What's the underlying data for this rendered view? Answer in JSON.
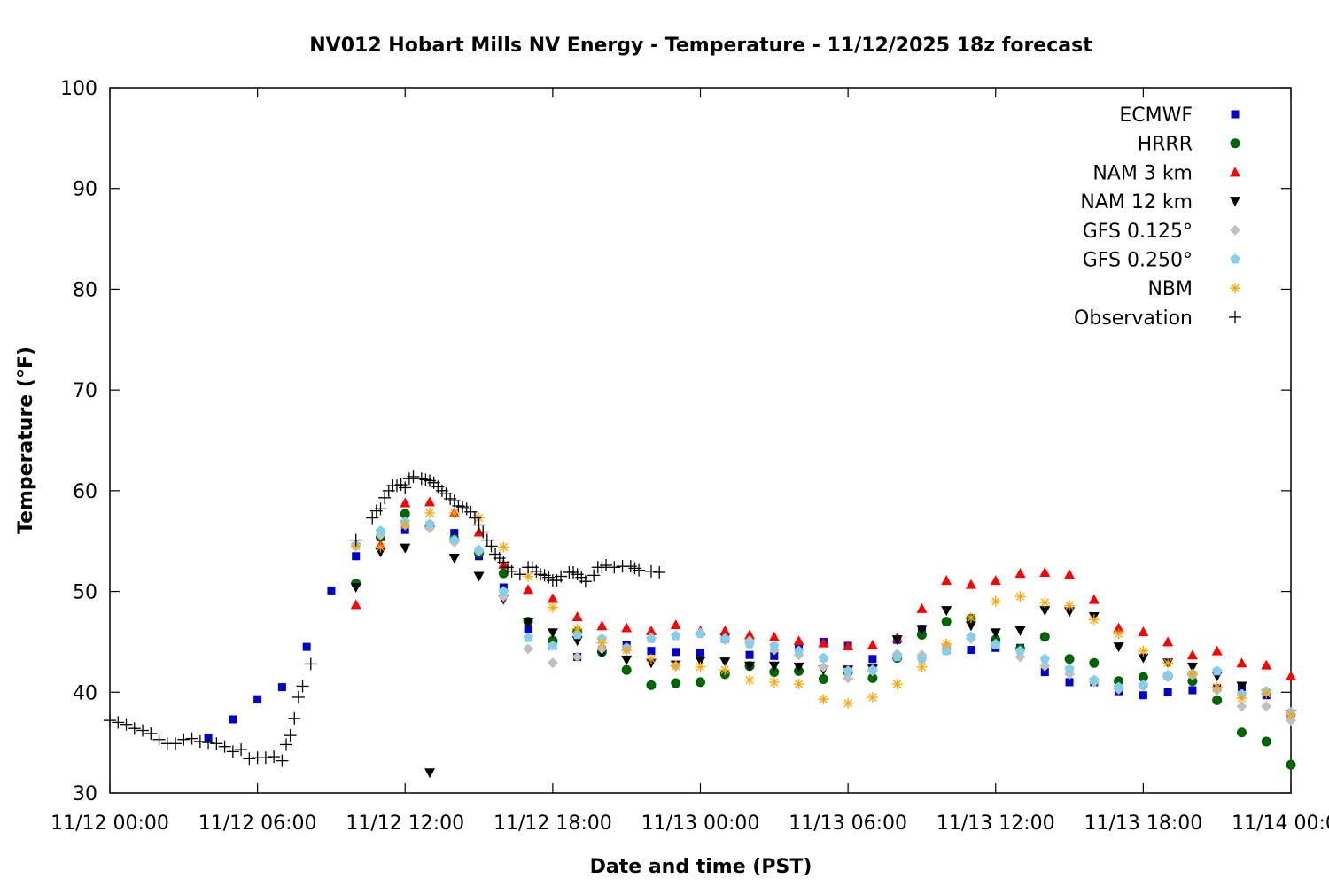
{
  "chart_data": {
    "type": "scatter",
    "title": "NV012 Hobart Mills NV Energy - Temperature - 11/12/2025 18z forecast",
    "xlabel": "Date and time (PST)",
    "ylabel": "Temperature (°F)",
    "xlim": [
      "11/12 00:00",
      "11/14 00:00"
    ],
    "ylim": [
      30,
      100
    ],
    "x_ticks": [
      "11/12 00:00",
      "11/12 06:00",
      "11/12 12:00",
      "11/12 18:00",
      "11/13 00:00",
      "11/13 06:00",
      "11/13 12:00",
      "11/13 18:00",
      "11/14 00:00"
    ],
    "y_ticks": [
      30,
      40,
      50,
      60,
      70,
      80,
      90,
      100
    ],
    "grid": false,
    "legend_position": "top-right",
    "model_times": [
      "11/12 10:00",
      "11/12 11:00",
      "11/12 12:00",
      "11/12 13:00",
      "11/12 14:00",
      "11/12 15:00",
      "11/12 16:00",
      "11/12 17:00",
      "11/12 18:00",
      "11/12 19:00",
      "11/12 20:00",
      "11/12 21:00",
      "11/12 22:00",
      "11/12 23:00",
      "11/13 00:00",
      "11/13 01:00",
      "11/13 02:00",
      "11/13 03:00",
      "11/13 04:00",
      "11/13 05:00",
      "11/13 06:00",
      "11/13 07:00",
      "11/13 08:00",
      "11/13 09:00",
      "11/13 10:00",
      "11/13 11:00",
      "11/13 12:00",
      "11/13 13:00",
      "11/13 14:00",
      "11/13 15:00",
      "11/13 16:00",
      "11/13 17:00",
      "11/13 18:00",
      "11/13 19:00",
      "11/13 20:00",
      "11/13 21:00",
      "11/13 22:00",
      "11/13 23:00",
      "11/14 00:00"
    ],
    "series": [
      {
        "name": "ECMWF",
        "marker": "square",
        "color": "#0000cc",
        "x": [
          "11/12 04:00",
          "11/12 05:00",
          "11/12 06:00",
          "11/12 07:00",
          "11/12 08:00",
          "11/12 09:00",
          "11/12 10:00",
          "11/12 11:00",
          "11/12 12:00",
          "11/12 13:00",
          "11/12 14:00",
          "11/12 15:00",
          "11/12 16:00",
          "11/12 17:00",
          "11/12 18:00",
          "11/12 19:00",
          "11/12 20:00",
          "11/12 21:00",
          "11/12 22:00",
          "11/12 23:00",
          "11/13 00:00",
          "11/13 01:00",
          "11/13 02:00",
          "11/13 03:00",
          "11/13 04:00",
          "11/13 05:00",
          "11/13 06:00",
          "11/13 07:00",
          "11/13 08:00",
          "11/13 09:00",
          "11/13 10:00",
          "11/13 11:00",
          "11/13 12:00",
          "11/13 13:00",
          "11/13 14:00",
          "11/13 15:00",
          "11/13 16:00",
          "11/13 17:00",
          "11/13 18:00",
          "11/13 19:00",
          "11/13 20:00",
          "11/13 21:00",
          "11/13 22:00",
          "11/13 23:00",
          "11/14 00:00"
        ],
        "values": [
          35.5,
          37.3,
          39.3,
          40.5,
          44.5,
          50.1,
          53.5,
          55.4,
          56.1,
          56.5,
          55.8,
          53.5,
          50.4,
          46.3,
          44.6,
          43.5,
          44.2,
          44.7,
          44.1,
          44.0,
          43.9,
          45.3,
          43.7,
          43.6,
          44.3,
          45.0,
          44.6,
          43.3,
          45.2,
          46.3,
          44.2,
          44.2,
          44.4,
          44.4,
          42.0,
          41.0,
          41.0,
          40.1,
          39.7,
          40.0,
          40.2,
          40.4,
          40.5,
          39.7,
          37.9
        ]
      },
      {
        "name": "HRRR",
        "marker": "circle",
        "color": "#006400",
        "values": [
          50.8,
          55.4,
          57.7,
          56.5,
          55.2,
          53.8,
          51.8,
          47.0,
          45.1,
          46.0,
          44.0,
          42.2,
          40.7,
          40.9,
          41.0,
          41.8,
          42.6,
          42.0,
          42.1,
          41.3,
          42.0,
          41.4,
          43.4,
          45.7,
          47.0,
          47.3,
          45.2,
          44.3,
          45.5,
          43.3,
          42.9,
          41.1,
          41.5,
          41.6,
          41.1,
          39.2,
          36.0,
          35.1,
          32.8
        ]
      },
      {
        "name": "NAM 3 km",
        "marker": "triangle-up",
        "color": "#ff0000",
        "values": [
          48.7,
          54.6,
          58.8,
          58.9,
          57.8,
          55.9,
          52.7,
          50.2,
          49.3,
          47.5,
          46.6,
          46.4,
          46.1,
          46.7,
          46.1,
          46.1,
          45.7,
          45.5,
          45.1,
          44.9,
          44.6,
          44.7,
          45.4,
          48.3,
          51.1,
          50.7,
          51.1,
          51.8,
          51.9,
          51.7,
          49.2,
          46.4,
          46.0,
          45.0,
          43.7,
          44.1,
          42.9,
          42.7,
          41.6
        ]
      },
      {
        "name": "NAM 12 km",
        "marker": "triangle-down",
        "color": "#000000",
        "values": [
          50.4,
          53.9,
          54.3,
          32.0,
          53.3,
          51.5,
          49.2,
          46.9,
          45.9,
          45.1,
          43.9,
          43.2,
          42.9,
          42.7,
          43.1,
          43.0,
          42.6,
          42.6,
          42.5,
          42.2,
          42.2,
          42.3,
          45.2,
          46.2,
          48.1,
          46.6,
          45.9,
          46.1,
          48.1,
          48.0,
          47.5,
          44.5,
          43.4,
          42.9,
          42.5,
          41.6,
          40.6,
          39.8,
          37.8
        ]
      },
      {
        "name": "GFS 0.125°",
        "marker": "diamond",
        "color": "#c0c0c0",
        "values": [
          54.5,
          55.6,
          56.6,
          56.3,
          54.9,
          54.0,
          49.5,
          44.3,
          42.9,
          43.5,
          44.3,
          44.2,
          45.4,
          42.6,
          45.9,
          45.2,
          45.1,
          44.2,
          43.7,
          42.5,
          41.4,
          42.1,
          43.8,
          43.7,
          44.6,
          45.3,
          44.8,
          43.5,
          42.6,
          41.8,
          41.0,
          40.3,
          40.6,
          41.5,
          41.7,
          40.2,
          38.6,
          38.6,
          37.2
        ]
      },
      {
        "name": "GFS 0.250°",
        "marker": "pentagon",
        "color": "#87ceeb",
        "values": [
          54.6,
          56.0,
          56.9,
          56.7,
          55.1,
          54.1,
          50.0,
          45.4,
          44.6,
          45.7,
          45.3,
          44.4,
          45.3,
          45.6,
          45.8,
          45.3,
          44.8,
          44.6,
          44.1,
          43.4,
          42.1,
          42.2,
          43.5,
          43.3,
          44.1,
          45.5,
          44.7,
          44.1,
          43.3,
          42.3,
          41.2,
          40.5,
          40.7,
          41.7,
          41.8,
          42.1,
          39.8,
          40.1,
          38.0
        ]
      },
      {
        "name": "NBM",
        "marker": "asterisk",
        "color": "#ffa500",
        "values": [
          54.5,
          54.4,
          56.6,
          57.8,
          57.8,
          57.3,
          54.4,
          51.5,
          48.4,
          46.3,
          44.9,
          44.2,
          43.3,
          42.6,
          42.5,
          42.2,
          41.2,
          41.0,
          40.8,
          39.3,
          38.9,
          39.5,
          40.8,
          42.5,
          44.8,
          47.4,
          49.0,
          49.5,
          48.9,
          48.6,
          47.2,
          45.8,
          44.1,
          42.9,
          41.8,
          40.5,
          39.4,
          39.9,
          37.8
        ]
      },
      {
        "name": "Observation",
        "marker": "plus",
        "color": "#000000",
        "x": [
          "11/12 00:00",
          "11/12 00:20",
          "11/12 00:40",
          "11/12 01:00",
          "11/12 01:20",
          "11/12 01:40",
          "11/12 02:00",
          "11/12 02:20",
          "11/12 02:40",
          "11/12 03:00",
          "11/12 03:20",
          "11/12 03:40",
          "11/12 04:00",
          "11/12 04:20",
          "11/12 04:40",
          "11/12 05:00",
          "11/12 05:20",
          "11/12 05:40",
          "11/12 06:00",
          "11/12 06:20",
          "11/12 06:40",
          "11/12 07:00",
          "11/12 07:10",
          "11/12 07:20",
          "11/12 07:30",
          "11/12 07:40",
          "11/12 07:50",
          "11/12 08:10",
          "11/12 10:00",
          "11/12 10:40",
          "11/12 10:50",
          "11/12 11:00",
          "11/12 11:10",
          "11/12 11:20",
          "11/12 11:30",
          "11/12 11:40",
          "11/12 11:50",
          "11/12 12:00",
          "11/12 12:10",
          "11/12 12:20",
          "11/12 12:40",
          "11/12 12:50",
          "11/12 13:00",
          "11/12 13:10",
          "11/12 13:20",
          "11/12 13:30",
          "11/12 13:40",
          "11/12 13:50",
          "11/12 14:00",
          "11/12 14:10",
          "11/12 14:20",
          "11/12 14:30",
          "11/12 14:40",
          "11/12 14:50",
          "11/12 15:00",
          "11/12 15:10",
          "11/12 15:20",
          "11/12 15:30",
          "11/12 15:40",
          "11/12 15:50",
          "11/12 16:00",
          "11/12 16:10",
          "11/12 16:20",
          "11/12 16:40",
          "11/12 17:00",
          "11/12 17:10",
          "11/12 17:20",
          "11/12 17:30",
          "11/12 17:40",
          "11/12 17:50",
          "11/12 18:00",
          "11/12 18:10",
          "11/12 18:20",
          "11/12 18:40",
          "11/12 18:50",
          "11/12 19:00",
          "11/12 19:10",
          "11/12 19:20",
          "11/12 19:40",
          "11/12 19:50",
          "11/12 20:00",
          "11/12 20:10",
          "11/12 20:30",
          "11/12 20:50",
          "11/12 21:10",
          "11/12 21:20",
          "11/12 21:30",
          "11/12 22:00",
          "11/12 22:20"
        ],
        "values": [
          37.2,
          37.0,
          36.8,
          36.4,
          36.2,
          35.9,
          35.3,
          34.9,
          34.9,
          35.3,
          35.4,
          35.1,
          35.0,
          34.9,
          34.6,
          34.1,
          34.3,
          33.4,
          33.5,
          33.5,
          33.6,
          33.2,
          34.8,
          35.7,
          37.4,
          39.5,
          40.6,
          42.8,
          55.1,
          57.3,
          58.0,
          58.2,
          59.3,
          60.0,
          60.5,
          60.5,
          60.6,
          60.3,
          61.2,
          61.4,
          61.2,
          61.1,
          61.0,
          60.8,
          60.4,
          60.0,
          59.7,
          59.2,
          59.0,
          58.5,
          58.4,
          58.2,
          57.9,
          57.3,
          56.6,
          55.9,
          55.1,
          54.5,
          53.7,
          53.3,
          52.9,
          52.4,
          52.0,
          51.7,
          52.4,
          52.4,
          52.0,
          51.7,
          51.6,
          51.4,
          51.1,
          51.1,
          51.5,
          51.9,
          51.9,
          51.7,
          51.4,
          51.0,
          51.6,
          52.4,
          52.4,
          52.6,
          52.4,
          52.5,
          52.5,
          52.3,
          52.1,
          52.0,
          51.9
        ]
      }
    ]
  }
}
